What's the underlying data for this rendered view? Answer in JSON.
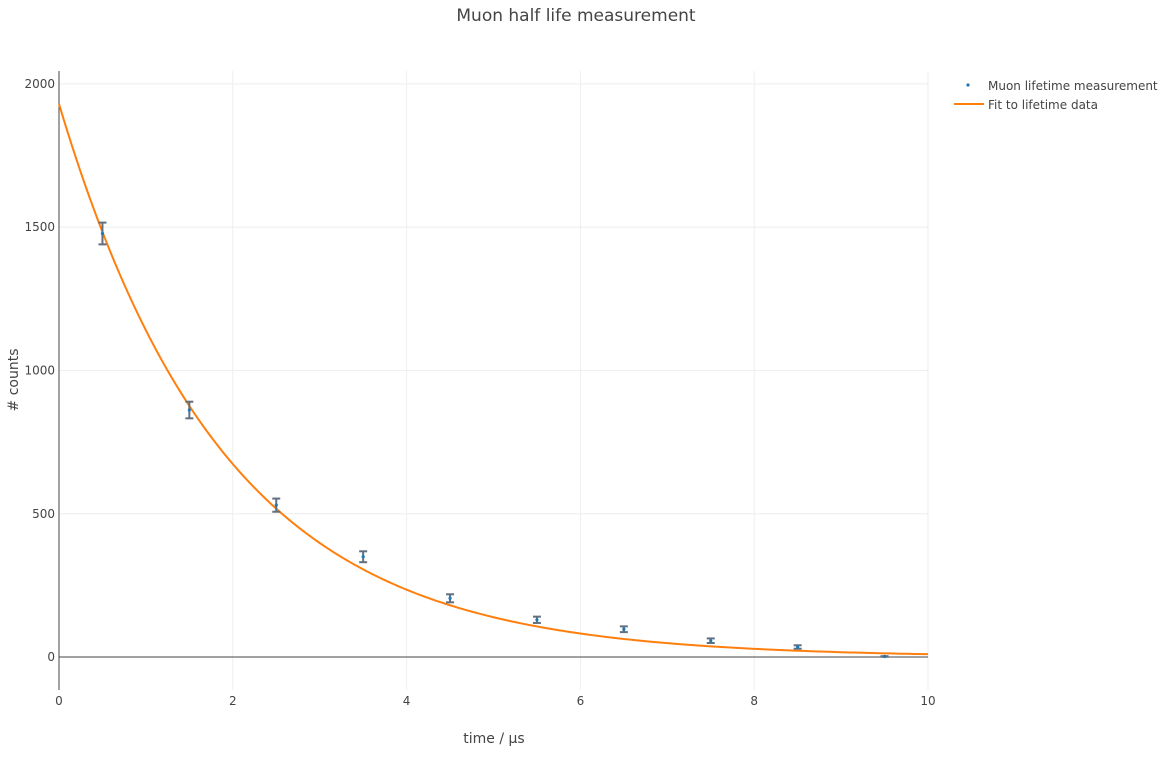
{
  "chart_data": {
    "type": "scatter",
    "title": "Muon half life measurement",
    "xlabel": "time / μs",
    "ylabel": "# counts",
    "xlim": [
      0,
      10
    ],
    "ylim": [
      -115,
      2045
    ],
    "x_ticks": [
      0,
      2,
      4,
      6,
      8,
      10
    ],
    "y_ticks": [
      0,
      500,
      1000,
      1500,
      2000
    ],
    "grid": true,
    "legend_position": "top-right",
    "series": [
      {
        "name": "Muon lifetime measurement",
        "type": "scatter",
        "color": "#1f77b4",
        "error_bar_color": "#607080",
        "x": [
          0.5,
          1.5,
          2.5,
          3.5,
          4.5,
          5.5,
          6.5,
          7.5,
          8.5,
          9.5
        ],
        "y": [
          1478,
          862,
          530,
          350,
          205,
          130,
          97,
          57,
          35,
          2
        ],
        "error": [
          38,
          29,
          23,
          19,
          14,
          11,
          10,
          8,
          6,
          1
        ]
      },
      {
        "name": "Fit to lifetime data",
        "type": "line",
        "color": "#ff7f0e",
        "fit_model": "N0 * exp(-t / tau)",
        "fit_params": {
          "N0": 1930,
          "tau": 1.9
        }
      }
    ]
  }
}
